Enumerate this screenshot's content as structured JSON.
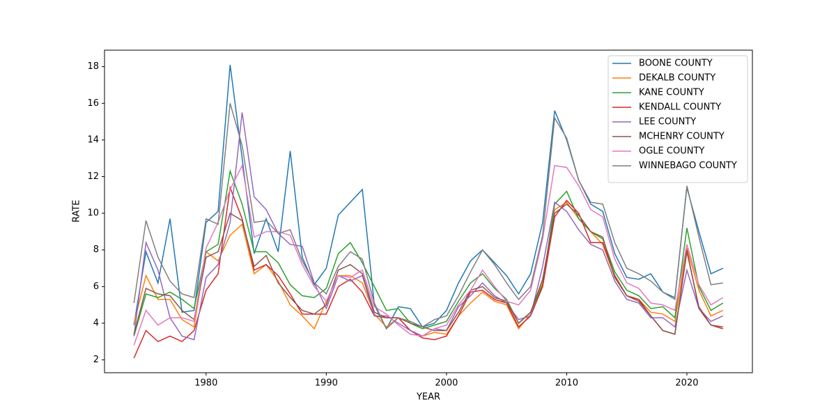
{
  "chart_data": {
    "type": "line",
    "xlabel": "YEAR",
    "ylabel": "RATE",
    "x": [
      1974,
      1975,
      1976,
      1977,
      1978,
      1979,
      1980,
      1981,
      1982,
      1983,
      1984,
      1985,
      1986,
      1987,
      1988,
      1989,
      1990,
      1991,
      1992,
      1993,
      1994,
      1995,
      1996,
      1997,
      1998,
      1999,
      2000,
      2001,
      2002,
      2003,
      2004,
      2005,
      2006,
      2007,
      2008,
      2009,
      2010,
      2011,
      2012,
      2013,
      2014,
      2015,
      2016,
      2017,
      2018,
      2019,
      2020,
      2021,
      2022,
      2023
    ],
    "xlim": [
      1971.55,
      2025.45
    ],
    "xticks": [
      1980,
      1990,
      2000,
      2010,
      2020
    ],
    "ylim": [
      1.3,
      18.9
    ],
    "yticks": [
      2,
      4,
      6,
      8,
      10,
      12,
      14,
      16,
      18
    ],
    "legend": "upper right",
    "series": [
      {
        "name": "BOONE COUNTY",
        "color": "#1f77b4",
        "values": [
          3.9,
          7.9,
          6.2,
          9.7,
          4.6,
          4.7,
          9.5,
          10.1,
          18.1,
          13.0,
          7.8,
          9.7,
          7.9,
          13.4,
          7.6,
          6.1,
          7.0,
          9.9,
          10.6,
          11.3,
          5.0,
          3.7,
          4.9,
          4.8,
          3.8,
          4.0,
          4.7,
          6.2,
          7.4,
          8.0,
          7.3,
          6.6,
          5.6,
          6.7,
          9.5,
          15.6,
          14.0,
          11.8,
          10.5,
          10.1,
          7.8,
          6.5,
          6.4,
          6.7,
          5.7,
          5.4,
          11.4,
          9.0,
          6.7,
          7.0
        ]
      },
      {
        "name": "DEKALB COUNTY",
        "color": "#ff7f0e",
        "values": [
          4.0,
          6.6,
          5.3,
          5.3,
          4.2,
          3.8,
          7.9,
          7.4,
          8.8,
          9.4,
          6.7,
          7.2,
          6.3,
          5.0,
          4.4,
          3.7,
          5.2,
          6.6,
          6.6,
          6.2,
          4.5,
          3.8,
          4.3,
          3.6,
          3.3,
          3.5,
          3.4,
          4.4,
          5.1,
          5.7,
          5.2,
          5.0,
          3.7,
          4.5,
          6.3,
          10.2,
          10.6,
          9.7,
          9.0,
          8.3,
          6.5,
          5.5,
          5.3,
          4.6,
          4.5,
          4.1,
          8.1,
          5.8,
          4.4,
          4.7
        ]
      },
      {
        "name": "KANE COUNTY",
        "color": "#2ca02c",
        "values": [
          3.3,
          5.6,
          5.4,
          5.7,
          5.3,
          4.8,
          7.9,
          8.3,
          12.3,
          10.5,
          7.9,
          7.9,
          7.3,
          6.1,
          5.5,
          5.4,
          5.9,
          7.8,
          8.4,
          7.3,
          6.0,
          4.7,
          4.8,
          4.0,
          3.7,
          3.9,
          4.1,
          5.2,
          6.2,
          6.7,
          5.9,
          5.3,
          4.0,
          4.6,
          6.1,
          10.5,
          11.2,
          9.7,
          9.0,
          8.6,
          6.8,
          5.8,
          5.5,
          4.8,
          4.9,
          4.3,
          9.2,
          6.0,
          4.7,
          5.1
        ]
      },
      {
        "name": "KENDALL COUNTY",
        "color": "#d62728",
        "values": [
          2.1,
          3.6,
          3.0,
          3.3,
          3.0,
          3.6,
          5.8,
          6.7,
          11.4,
          9.7,
          6.9,
          7.2,
          6.6,
          5.6,
          4.5,
          4.5,
          4.5,
          6.0,
          6.4,
          5.7,
          4.4,
          4.3,
          4.3,
          3.6,
          3.2,
          3.1,
          3.3,
          4.4,
          5.7,
          5.8,
          5.3,
          5.1,
          3.8,
          4.4,
          6.0,
          9.8,
          10.7,
          10.0,
          8.4,
          8.4,
          6.6,
          5.5,
          5.3,
          4.4,
          3.6,
          3.4,
          8.0,
          4.8,
          3.9,
          3.7
        ]
      },
      {
        "name": "LEE COUNTY",
        "color": "#9467bd",
        "values": [
          3.3,
          8.4,
          6.9,
          4.3,
          3.3,
          3.1,
          6.5,
          7.2,
          9.5,
          15.5,
          10.9,
          10.2,
          8.9,
          8.3,
          8.2,
          6.2,
          4.8,
          6.6,
          6.3,
          6.6,
          4.4,
          4.4,
          4.0,
          3.6,
          3.3,
          3.7,
          3.6,
          4.9,
          5.5,
          6.2,
          5.5,
          5.1,
          4.2,
          4.4,
          7.1,
          10.6,
          10.1,
          9.1,
          8.3,
          8.0,
          6.3,
          5.3,
          5.1,
          4.3,
          4.3,
          3.8,
          6.9,
          4.8,
          4.1,
          4.4
        ]
      },
      {
        "name": "MCHENRY COUNTY",
        "color": "#8c564b",
        "values": [
          3.4,
          5.9,
          5.6,
          5.5,
          4.7,
          4.2,
          7.6,
          7.9,
          10.0,
          9.6,
          7.1,
          7.7,
          6.2,
          5.4,
          4.7,
          4.5,
          5.0,
          6.9,
          7.2,
          6.7,
          4.6,
          4.3,
          4.3,
          4.0,
          3.8,
          3.6,
          3.6,
          4.6,
          5.8,
          6.0,
          5.4,
          5.2,
          4.0,
          4.6,
          6.4,
          10.0,
          10.5,
          9.9,
          9.0,
          8.7,
          6.5,
          5.5,
          5.2,
          4.4,
          3.6,
          3.4,
          7.9,
          4.9,
          3.9,
          3.8
        ]
      },
      {
        "name": "OGLE COUNTY",
        "color": "#e377c2",
        "values": [
          2.8,
          4.7,
          3.9,
          4.3,
          4.3,
          4.1,
          8.1,
          9.5,
          11.3,
          12.6,
          8.7,
          9.0,
          9.0,
          8.8,
          7.2,
          6.0,
          5.2,
          6.6,
          6.5,
          6.9,
          4.9,
          4.5,
          3.9,
          3.4,
          3.3,
          3.7,
          3.9,
          5.0,
          5.8,
          6.9,
          6.0,
          5.2,
          5.0,
          5.8,
          8.6,
          12.6,
          12.5,
          11.5,
          10.2,
          9.8,
          7.5,
          6.2,
          5.9,
          5.1,
          5.0,
          4.7,
          8.3,
          6.1,
          5.0,
          5.4
        ]
      },
      {
        "name": "WINNEBAGO COUNTY",
        "color": "#7f7f7f",
        "values": [
          5.1,
          9.6,
          7.6,
          6.3,
          5.6,
          5.4,
          9.7,
          9.4,
          16.0,
          13.7,
          9.5,
          9.6,
          8.9,
          9.1,
          7.4,
          6.2,
          5.6,
          7.1,
          7.9,
          7.5,
          5.1,
          3.7,
          4.3,
          4.1,
          3.8,
          4.2,
          4.4,
          5.5,
          6.8,
          8.0,
          7.2,
          6.2,
          5.3,
          6.0,
          8.8,
          15.2,
          14.1,
          11.8,
          10.6,
          10.5,
          8.4,
          7.0,
          6.7,
          6.3,
          5.7,
          5.3,
          11.5,
          8.7,
          6.1,
          6.2
        ]
      }
    ]
  }
}
